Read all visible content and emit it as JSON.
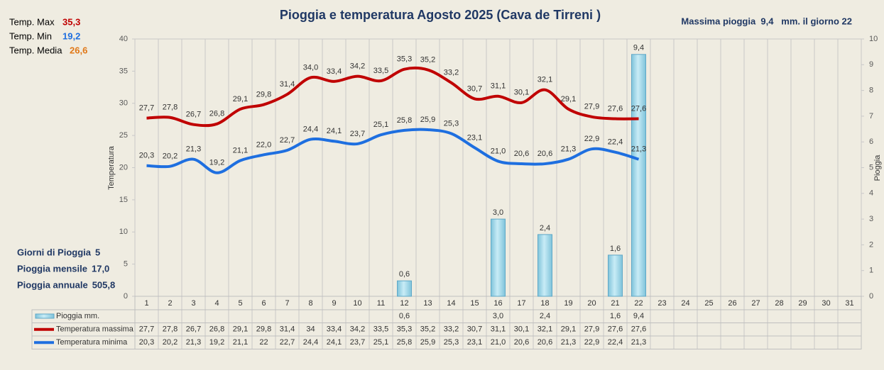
{
  "chart_data": {
    "type": "combo",
    "title": "Pioggia e temperatura Agosto 2025 (Cava de Tirreni )",
    "note": "Massima pioggia  9,4   mm. il giorno 22",
    "stats": [
      {
        "label": "Temp. Max",
        "value": "35,3",
        "color": "#c00000"
      },
      {
        "label": "Temp. Min",
        "value": "19,2",
        "color": "#1e6fe0"
      },
      {
        "label": "Temp. Media",
        "value": "26,6",
        "color": "#e07818"
      }
    ],
    "rain_stats": [
      {
        "label": "Giorni di Pioggia",
        "value": "5"
      },
      {
        "label": "Pioggia mensile",
        "value": "17,0"
      },
      {
        "label": "Pioggia annuale",
        "value": "505,8"
      }
    ],
    "ylabel": "Temperatura",
    "y2label": "Pioggia",
    "ylim": [
      0,
      40
    ],
    "yticks": [
      0,
      5,
      10,
      15,
      20,
      25,
      30,
      35,
      40
    ],
    "y2lim": [
      0,
      10
    ],
    "y2ticks": [
      0,
      1,
      2,
      3,
      4,
      5,
      6,
      7,
      8,
      9,
      10
    ],
    "categories": [
      "1",
      "2",
      "3",
      "4",
      "5",
      "6",
      "7",
      "8",
      "9",
      "10",
      "11",
      "12",
      "13",
      "14",
      "15",
      "16",
      "17",
      "18",
      "19",
      "20",
      "21",
      "22",
      "23",
      "24",
      "25",
      "26",
      "27",
      "28",
      "29",
      "30",
      "31"
    ],
    "series": [
      {
        "name": "Pioggia mm.",
        "type": "bar",
        "axis": "y2",
        "color": "#a9dbeb",
        "values": [
          null,
          null,
          null,
          null,
          null,
          null,
          null,
          null,
          null,
          null,
          null,
          0.6,
          null,
          null,
          null,
          3.0,
          null,
          2.4,
          null,
          null,
          1.6,
          9.4,
          null,
          null,
          null,
          null,
          null,
          null,
          null,
          null,
          null
        ],
        "value_labels": [
          null,
          null,
          null,
          null,
          null,
          null,
          null,
          null,
          null,
          null,
          null,
          "0,6",
          null,
          null,
          null,
          "3,0",
          null,
          "2,4",
          null,
          null,
          "1,6",
          "9,4",
          null,
          null,
          null,
          null,
          null,
          null,
          null,
          null,
          null
        ],
        "table_labels": [
          null,
          null,
          null,
          null,
          null,
          null,
          null,
          null,
          null,
          null,
          null,
          "0,6",
          null,
          null,
          null,
          "3,0",
          null,
          "2,4",
          null,
          null,
          "1,6",
          "9,4",
          null,
          null,
          null,
          null,
          null,
          null,
          null,
          null,
          null
        ]
      },
      {
        "name": "Temperatura massima",
        "type": "line",
        "color": "#c00000",
        "values": [
          27.7,
          27.8,
          26.7,
          26.8,
          29.1,
          29.8,
          31.4,
          34.0,
          33.4,
          34.2,
          33.5,
          35.3,
          35.2,
          33.2,
          30.7,
          31.1,
          30.1,
          32.1,
          29.1,
          27.9,
          27.6,
          27.6,
          null,
          null,
          null,
          null,
          null,
          null,
          null,
          null,
          null
        ],
        "value_labels": [
          "27,7",
          "27,8",
          "26,7",
          "26,8",
          "29,1",
          "29,8",
          "31,4",
          "34,0",
          "33,4",
          "34,2",
          "33,5",
          "35,3",
          "35,2",
          "33,2",
          "30,7",
          "31,1",
          "30,1",
          "32,1",
          "29,1",
          "27,9",
          "27,6",
          "27,6",
          null,
          null,
          null,
          null,
          null,
          null,
          null,
          null,
          null
        ],
        "table_labels": [
          "27,7",
          "27,8",
          "26,7",
          "26,8",
          "29,1",
          "29,8",
          "31,4",
          "34",
          "33,4",
          "34,2",
          "33,5",
          "35,3",
          "35,2",
          "33,2",
          "30,7",
          "31,1",
          "30,1",
          "32,1",
          "29,1",
          "27,9",
          "27,6",
          "27,6",
          null,
          null,
          null,
          null,
          null,
          null,
          null,
          null,
          null
        ]
      },
      {
        "name": "Temperatura minima",
        "type": "line",
        "color": "#1e6fe0",
        "values": [
          20.3,
          20.2,
          21.3,
          19.2,
          21.1,
          22.0,
          22.7,
          24.4,
          24.1,
          23.7,
          25.1,
          25.8,
          25.9,
          25.3,
          23.1,
          21.0,
          20.6,
          20.6,
          21.3,
          22.9,
          22.4,
          21.3,
          null,
          null,
          null,
          null,
          null,
          null,
          null,
          null,
          null
        ],
        "value_labels": [
          "20,3",
          "20,2",
          "21,3",
          "19,2",
          "21,1",
          "22,0",
          "22,7",
          "24,4",
          "24,1",
          "23,7",
          "25,1",
          "25,8",
          "25,9",
          "25,3",
          "23,1",
          "21,0",
          "20,6",
          "20,6",
          "21,3",
          "22,9",
          "22,4",
          "21,3",
          null,
          null,
          null,
          null,
          null,
          null,
          null,
          null,
          null
        ],
        "table_labels": [
          "20,3",
          "20,2",
          "21,3",
          "19,2",
          "21,1",
          "22",
          "22,7",
          "24,4",
          "24,1",
          "23,7",
          "25,1",
          "25,8",
          "25,9",
          "25,3",
          "23,1",
          "21,0",
          "20,6",
          "20,6",
          "21,3",
          "22,9",
          "22,4",
          "21,3",
          null,
          null,
          null,
          null,
          null,
          null,
          null,
          null,
          null
        ]
      }
    ]
  }
}
